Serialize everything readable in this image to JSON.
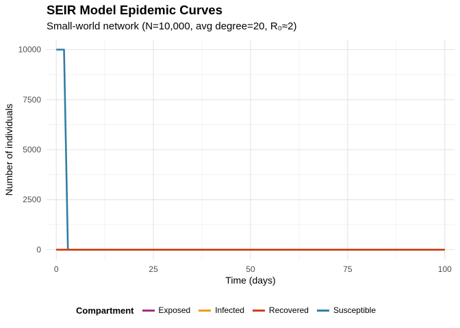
{
  "chart_data": {
    "type": "line",
    "title": "SEIR Model Epidemic Curves",
    "subtitle": "Small-world network (N=10,000, avg degree=20, R₀≈2)",
    "xlabel": "Time (days)",
    "ylabel": "Number of individuals",
    "xlim": [
      -2.5,
      102.5
    ],
    "ylim": [
      -500,
      10500
    ],
    "x_ticks": [
      0,
      25,
      50,
      75,
      100
    ],
    "y_ticks": [
      0,
      2500,
      5000,
      7500,
      10000
    ],
    "x_tick_labels": [
      "0",
      "25",
      "50",
      "75",
      "100"
    ],
    "y_tick_labels": [
      "0",
      "2500",
      "5000",
      "7500",
      "10000"
    ],
    "grid": true,
    "legend_position": "bottom",
    "legend_title": "Compartment",
    "series": [
      {
        "name": "Exposed",
        "color": "#a3307e",
        "x": [
          0,
          100
        ],
        "y": [
          0,
          0
        ]
      },
      {
        "name": "Infected",
        "color": "#f39c12",
        "x": [
          0,
          100
        ],
        "y": [
          0,
          0
        ]
      },
      {
        "name": "Recovered",
        "color": "#d13d1c",
        "x": [
          0,
          100
        ],
        "y": [
          0,
          0
        ]
      },
      {
        "name": "Susceptible",
        "color": "#2e7ea6",
        "x": [
          0,
          2,
          3,
          100
        ],
        "y": [
          10000,
          10000,
          0,
          0
        ]
      }
    ],
    "draw_order": [
      "Susceptible",
      "Exposed",
      "Infected",
      "Recovered"
    ]
  }
}
